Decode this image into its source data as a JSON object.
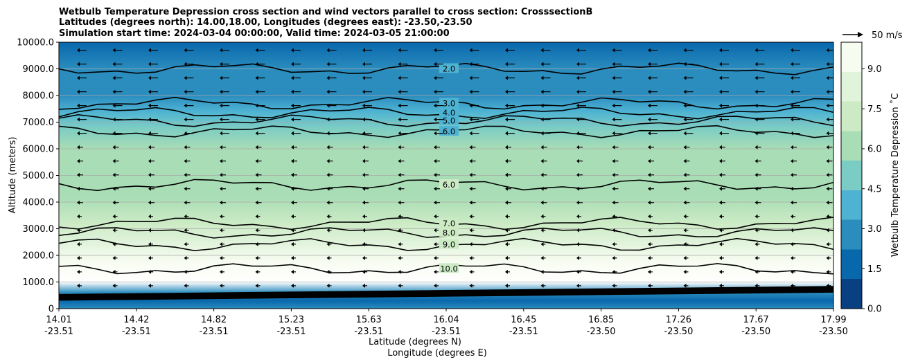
{
  "chart_data": {
    "type": "heatmap",
    "title": [
      "Wetbulb Temperature Depression cross section and wind vectors parallel to cross section: CrosssectionB",
      "Latitudes (degrees north): 14.00,18.00, Longitudes (degrees east): -23.50,-23.50",
      "Simulation start time: 2024-03-04 00:00:00, Valid time: 2024-03-05 21:00:00"
    ],
    "xlabel": [
      "Latitude (degrees N)",
      "Longitude (degrees E)"
    ],
    "ylabel": "Altitude (meters)",
    "ylim": [
      0,
      10000
    ],
    "x_ticks": [
      {
        "lat": "14.01",
        "lon": "-23.51"
      },
      {
        "lat": "14.42",
        "lon": "-23.51"
      },
      {
        "lat": "14.82",
        "lon": "-23.51"
      },
      {
        "lat": "15.23",
        "lon": "-23.51"
      },
      {
        "lat": "15.63",
        "lon": "-23.51"
      },
      {
        "lat": "16.04",
        "lon": "-23.51"
      },
      {
        "lat": "16.45",
        "lon": "-23.51"
      },
      {
        "lat": "16.85",
        "lon": "-23.50"
      },
      {
        "lat": "17.26",
        "lon": "-23.50"
      },
      {
        "lat": "17.67",
        "lon": "-23.50"
      },
      {
        "lat": "17.99",
        "lon": "-23.50"
      }
    ],
    "y_ticks": [
      "0",
      "1000.0",
      "2000.0",
      "3000.0",
      "4000.0",
      "5000.0",
      "6000.0",
      "7000.0",
      "8000.0",
      "9000.0",
      "10000.0"
    ],
    "grid": true,
    "colorbar": {
      "label": "Wetbulb Temperature Depression ˚C",
      "range": [
        0,
        10
      ],
      "ticks": [
        "0.0",
        "1.5",
        "3.0",
        "4.5",
        "6.0",
        "7.5",
        "9.0"
      ],
      "colors": [
        "#084081",
        "#0868ac",
        "#2b8cbe",
        "#4eb3d3",
        "#7bccc4",
        "#a8ddb5",
        "#ccebc5",
        "#e0f3db",
        "#f7fcf0"
      ]
    },
    "wind_legend": "50 m/s",
    "depression_profile": [
      {
        "altitude": 0,
        "value": 2.0
      },
      {
        "altitude": 300,
        "value": 1.5
      },
      {
        "altitude": 600,
        "value": 3.0
      },
      {
        "altitude": 1000,
        "value": 10.0
      },
      {
        "altitude": 1800,
        "value": 9.8
      },
      {
        "altitude": 2500,
        "value": 8.8
      },
      {
        "altitude": 3200,
        "value": 7.4
      },
      {
        "altitude": 4200,
        "value": 6.3
      },
      {
        "altitude": 5000,
        "value": 6.8
      },
      {
        "altitude": 6000,
        "value": 6.4
      },
      {
        "altitude": 6800,
        "value": 5.5
      },
      {
        "altitude": 7400,
        "value": 4.0
      },
      {
        "altitude": 8000,
        "value": 3.0
      },
      {
        "altitude": 9000,
        "value": 2.2
      },
      {
        "altitude": 10000,
        "value": 1.2
      }
    ],
    "contours": [
      {
        "label": "2.0",
        "altitude": 9000
      },
      {
        "label": "3.0",
        "altitude": 7700
      },
      {
        "label": "4.0",
        "altitude": 7350
      },
      {
        "label": "5.0",
        "altitude": 7050
      },
      {
        "label": "6.0",
        "altitude": 6650
      },
      {
        "label": "6.0",
        "altitude": 4650
      },
      {
        "label": "7.0",
        "altitude": 3200
      },
      {
        "label": "8.0",
        "altitude": 2850
      },
      {
        "label": "9.0",
        "altitude": 2400
      },
      {
        "label": "10.0",
        "altitude": 1500
      }
    ]
  }
}
